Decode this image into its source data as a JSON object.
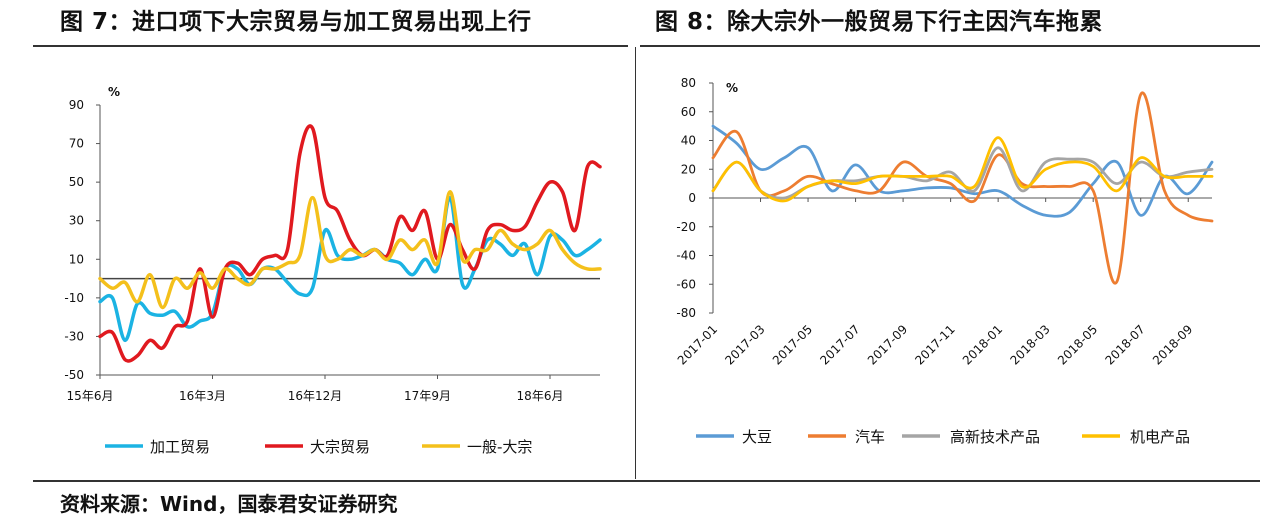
{
  "title_left": "图 7：进口项下大宗贸易与加工贸易出现上行",
  "title_right": "图 8：除大宗外一般贸易下行主因汽车拖累",
  "source": "资料来源：Wind，国泰君安证券研究",
  "chart_data": [
    {
      "type": "line",
      "ylabel": "%",
      "ylim": [
        -50,
        90
      ],
      "yticks": [
        90,
        70,
        50,
        30,
        10,
        -10,
        -30,
        -50
      ],
      "x_tick_labels": [
        "15年6月",
        "16年3月",
        "16年12月",
        "17年9月",
        "18年6月"
      ],
      "x_tick_index": [
        0,
        9,
        18,
        27,
        36
      ],
      "n_points": 41,
      "legend": [
        "加工贸易",
        "大宗贸易",
        "一般-大宗"
      ],
      "series": [
        {
          "name": "加工贸易",
          "color": "#1bb3e3",
          "values": [
            -12,
            -10,
            -32,
            -13,
            -18,
            -19,
            -17,
            -25,
            -22,
            -18,
            5,
            5,
            -3,
            5,
            5,
            -2,
            -8,
            -5,
            25,
            12,
            10,
            12,
            15,
            10,
            8,
            2,
            10,
            5,
            42,
            -3,
            5,
            20,
            18,
            12,
            18,
            2,
            22,
            20,
            12,
            15,
            20
          ]
        },
        {
          "name": "大宗贸易",
          "color": "#e0191f",
          "values": [
            -30,
            -28,
            -42,
            -40,
            -32,
            -36,
            -25,
            -22,
            5,
            -20,
            5,
            8,
            2,
            10,
            12,
            15,
            65,
            78,
            42,
            35,
            20,
            12,
            15,
            12,
            32,
            25,
            35,
            10,
            28,
            15,
            5,
            25,
            28,
            25,
            27,
            40,
            50,
            45,
            25,
            58,
            58
          ]
        },
        {
          "name": "一般-大宗",
          "color": "#f4c01b",
          "values": [
            0,
            -5,
            -2,
            -12,
            2,
            -15,
            0,
            -5,
            3,
            -5,
            5,
            0,
            -3,
            5,
            5,
            8,
            12,
            42,
            12,
            10,
            15,
            12,
            15,
            10,
            20,
            15,
            20,
            8,
            45,
            10,
            15,
            15,
            25,
            18,
            15,
            18,
            25,
            15,
            8,
            5,
            5
          ]
        }
      ]
    },
    {
      "type": "line",
      "ylabel": "%",
      "ylim": [
        -80,
        80
      ],
      "yticks": [
        80,
        60,
        40,
        20,
        0,
        -20,
        -40,
        -60,
        -80
      ],
      "x_tick_labels": [
        "2017-01",
        "2017-03",
        "2017-05",
        "2017-07",
        "2017-09",
        "2017-11",
        "2018-01",
        "2018-03",
        "2018-05",
        "2018-07",
        "2018-09"
      ],
      "x_tick_index": [
        0,
        2,
        4,
        6,
        8,
        10,
        12,
        14,
        16,
        18,
        20
      ],
      "n_points": 22,
      "legend": [
        "大豆",
        "汽车",
        "高新技术产品",
        "机电产品"
      ],
      "series": [
        {
          "name": "大豆",
          "color": "#5b9bd5",
          "values": [
            50,
            38,
            20,
            28,
            35,
            5,
            23,
            5,
            5,
            7,
            7,
            3,
            5,
            -5,
            -12,
            -10,
            10,
            25,
            -12,
            15,
            3,
            25
          ]
        },
        {
          "name": "汽车",
          "color": "#ed7d31",
          "values": [
            28,
            46,
            5,
            5,
            15,
            10,
            5,
            5,
            25,
            15,
            10,
            -2,
            30,
            10,
            8,
            8,
            5,
            -58,
            72,
            5,
            -12,
            -16
          ]
        },
        {
          "name": "高新技术产品",
          "color": "#a5a5a5",
          "values": [
            5,
            25,
            5,
            0,
            8,
            12,
            12,
            15,
            15,
            12,
            18,
            5,
            35,
            5,
            25,
            27,
            25,
            10,
            25,
            15,
            18,
            20
          ]
        },
        {
          "name": "机电产品",
          "color": "#ffc000",
          "values": [
            5,
            25,
            5,
            -2,
            8,
            12,
            10,
            15,
            15,
            15,
            15,
            8,
            42,
            8,
            20,
            25,
            22,
            5,
            28,
            15,
            15,
            15
          ]
        }
      ]
    }
  ]
}
